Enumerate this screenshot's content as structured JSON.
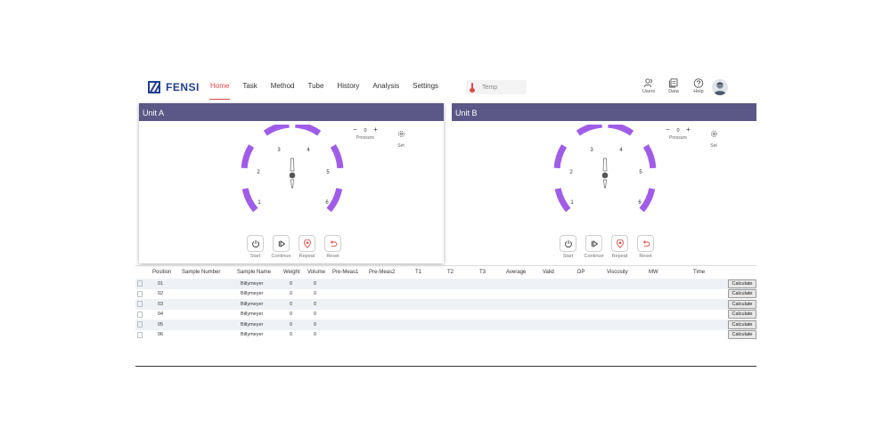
{
  "header": {
    "logo_text": "FENSI",
    "nav": [
      "Home",
      "Task",
      "Method",
      "Tube",
      "History",
      "Analysis",
      "Settings"
    ],
    "active_nav": "Home",
    "temp_placeholder": "Temp",
    "icons": [
      {
        "icon": "users-icon",
        "label": "Users"
      },
      {
        "icon": "data-icon",
        "label": "Data"
      },
      {
        "icon": "help-icon",
        "label": "Help"
      }
    ]
  },
  "units": [
    {
      "title": "Unit A",
      "positions": [
        "1",
        "2",
        "3",
        "4",
        "5",
        "6"
      ],
      "pressure_value": "0",
      "pressure_label": "Pressure",
      "set_label": "Set",
      "controls": [
        "Start",
        "Continue",
        "Repeat",
        "Reset"
      ]
    },
    {
      "title": "Unit B",
      "positions": [
        "1",
        "2",
        "3",
        "4",
        "5",
        "6"
      ],
      "pressure_value": "0",
      "pressure_label": "Pressure",
      "set_label": "Set",
      "controls": [
        "Start",
        "Continue",
        "Repeat",
        "Reset"
      ]
    }
  ],
  "colors": {
    "unit_header": "#5b5787",
    "dial_arc": "#a05ce8",
    "active_nav": "#e04848"
  },
  "table": {
    "columns": [
      "Position",
      "Sample Number",
      "Sample Name",
      "Weight",
      "Volume",
      "Pre-Meas1",
      "Pre-Meas2",
      "T1",
      "T2",
      "T3",
      "Average",
      "Valid",
      "DP",
      "Viscosity",
      "MW",
      "Time"
    ],
    "rows": [
      {
        "position": "01",
        "sample_name": "Billymeyer",
        "weight": "0",
        "volume": "0"
      },
      {
        "position": "02",
        "sample_name": "Billymeyer",
        "weight": "0",
        "volume": "0"
      },
      {
        "position": "03",
        "sample_name": "Billymeyer",
        "weight": "0",
        "volume": "0"
      },
      {
        "position": "04",
        "sample_name": "Billymeyer",
        "weight": "0",
        "volume": "0"
      },
      {
        "position": "05",
        "sample_name": "Billymeyer",
        "weight": "0",
        "volume": "0"
      },
      {
        "position": "06",
        "sample_name": "Billymeyer",
        "weight": "0",
        "volume": "0"
      }
    ],
    "action_label": "Calculate"
  }
}
